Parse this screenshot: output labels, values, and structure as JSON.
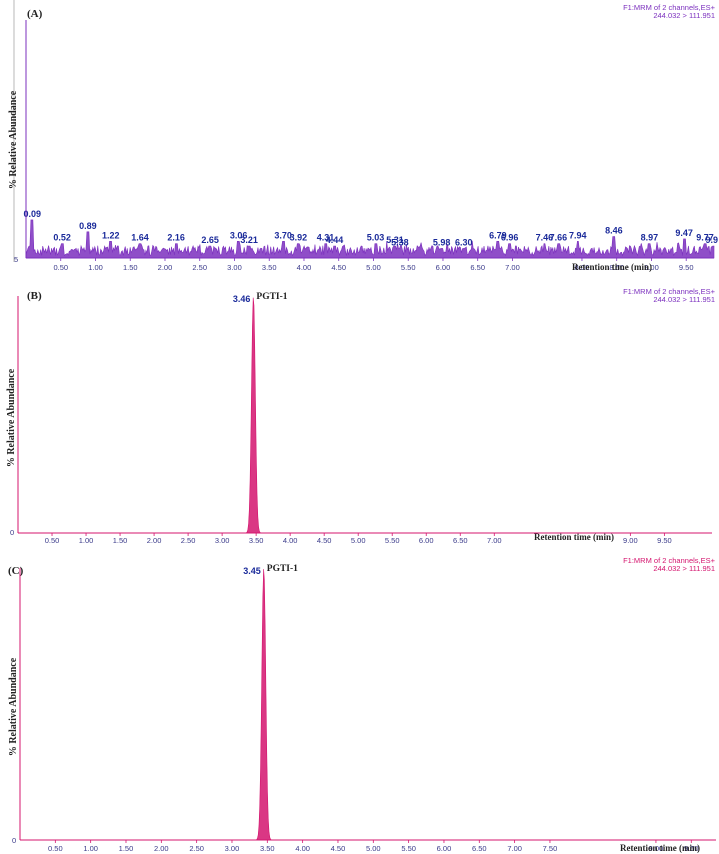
{
  "chart_data": [
    {
      "panel": "(A)",
      "type": "line",
      "channel": "F1:MRM of 2 channels,ES+",
      "transition": "244.032 > 111.951",
      "ylabel": "% Relative Abundance",
      "xlabel": "Retention time (min)",
      "y_tick": "5",
      "xlim": [
        0.0,
        9.9
      ],
      "ylim": [
        0,
        100
      ],
      "x_ticks": [
        "0.50",
        "1.00",
        "1.50",
        "2.00",
        "2.50",
        "3.00",
        "3.50",
        "4.00",
        "4.50",
        "5.00",
        "5.50",
        "6.00",
        "6.50",
        "7.00",
        "8.00",
        "8.50",
        "9.00",
        "9.50"
      ],
      "line_color": "#7b2fbe",
      "fill_color": "#7b2fbe",
      "noise_level": 5,
      "series": [
        {
          "x": [],
          "y": []
        }
      ],
      "peak_labels": [
        {
          "x": 0.09,
          "text": "0.09",
          "height": 16
        },
        {
          "x": 0.52,
          "text": "0.52",
          "height": 6
        },
        {
          "x": 0.89,
          "text": "0.89",
          "height": 11
        },
        {
          "x": 1.22,
          "text": "1.22",
          "height": 7
        },
        {
          "x": 1.64,
          "text": "1.64",
          "height": 6
        },
        {
          "x": 2.16,
          "text": "2.16",
          "height": 6
        },
        {
          "x": 2.65,
          "text": "2.65",
          "height": 5
        },
        {
          "x": 3.06,
          "text": "3.06",
          "height": 7
        },
        {
          "x": 3.21,
          "text": "3.21",
          "height": 5
        },
        {
          "x": 3.7,
          "text": "3.70",
          "height": 7
        },
        {
          "x": 3.92,
          "text": "3.92",
          "height": 6
        },
        {
          "x": 4.31,
          "text": "4.31",
          "height": 6
        },
        {
          "x": 4.44,
          "text": "4.44",
          "height": 5
        },
        {
          "x": 5.03,
          "text": "5.03",
          "height": 6
        },
        {
          "x": 5.31,
          "text": "5.31",
          "height": 5
        },
        {
          "x": 5.38,
          "text": "5.38",
          "height": 4
        },
        {
          "x": 5.98,
          "text": "5.98",
          "height": 4
        },
        {
          "x": 6.3,
          "text": "6.30",
          "height": 4
        },
        {
          "x": 6.79,
          "text": "6.79",
          "height": 7
        },
        {
          "x": 6.96,
          "text": "6.96",
          "height": 6
        },
        {
          "x": 7.46,
          "text": "7.46",
          "height": 6
        },
        {
          "x": 7.66,
          "text": "7.66",
          "height": 6
        },
        {
          "x": 7.94,
          "text": "7.94",
          "height": 7
        },
        {
          "x": 8.46,
          "text": "8.46",
          "height": 9
        },
        {
          "x": 8.97,
          "text": "8.97",
          "height": 6
        },
        {
          "x": 9.47,
          "text": "9.47",
          "height": 8
        },
        {
          "x": 9.77,
          "text": "9.77",
          "height": 6
        },
        {
          "x": 9.9,
          "text": "9.9",
          "height": 5
        }
      ]
    },
    {
      "panel": "(B)",
      "type": "line",
      "channel": "F1:MRM of 2 channels,ES+",
      "transition": "244.032 > 111.951",
      "ylabel": "% Relative Abundance",
      "xlabel": "Retention time (min)",
      "y_tick": "0",
      "xlim": [
        0.0,
        10.2
      ],
      "ylim": [
        0,
        100
      ],
      "x_ticks": [
        "0.50",
        "1.00",
        "1.50",
        "2.00",
        "2.50",
        "3.00",
        "3.50",
        "4.00",
        "4.50",
        "5.00",
        "5.50",
        "6.00",
        "6.50",
        "7.00",
        "9.00",
        "9.50"
      ],
      "line_color": "#d4146e",
      "fill_color": "#d4146e",
      "noise_level": 0,
      "series": [
        {
          "x": [
            3.46
          ],
          "y": [
            100
          ]
        }
      ],
      "peak": {
        "x": 3.46,
        "sigma": 0.028,
        "height": 100,
        "label": "3.46",
        "compound": "PGTI-1"
      }
    },
    {
      "panel": "(C)",
      "type": "line",
      "channel": "F1:MRM of 2 channels,ES+",
      "transition": "244.032 > 111.951",
      "ylabel": "% Relative Abundance",
      "xlabel": "Retention time (min)",
      "y_tick": "0",
      "xlim": [
        0.0,
        9.85
      ],
      "ylim": [
        0,
        100
      ],
      "x_ticks": [
        "0.50",
        "1.00",
        "1.50",
        "2.00",
        "2.50",
        "3.00",
        "3.50",
        "4.00",
        "4.50",
        "5.00",
        "5.50",
        "6.00",
        "6.50",
        "7.00",
        "7.50",
        "9.00",
        "9.50"
      ],
      "line_color": "#d4146e",
      "fill_color": "#d4146e",
      "noise_level": 0,
      "series": [
        {
          "x": [
            3.45
          ],
          "y": [
            100
          ]
        }
      ],
      "peak": {
        "x": 3.45,
        "sigma": 0.028,
        "height": 100,
        "label": "3.45",
        "compound": "PGTI-1"
      }
    }
  ],
  "colors": {
    "axis": "#d4146e",
    "axis_a": "#7b2fbe",
    "info_a": "#7b2fbe",
    "info_b": "#7b2fbe",
    "info_c": "#d4146e"
  }
}
